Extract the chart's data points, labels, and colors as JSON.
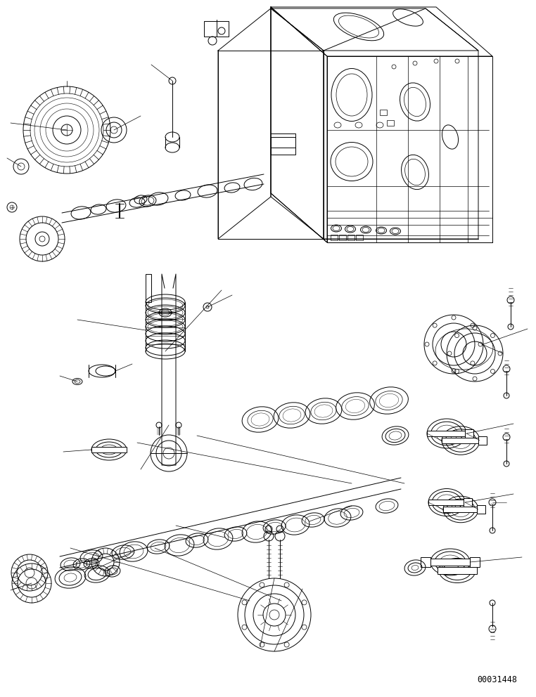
{
  "background_color": "#ffffff",
  "line_color": "#000000",
  "line_width": 0.7,
  "part_number": "00031448",
  "fig_width": 7.62,
  "fig_height": 9.92,
  "dpi": 100
}
